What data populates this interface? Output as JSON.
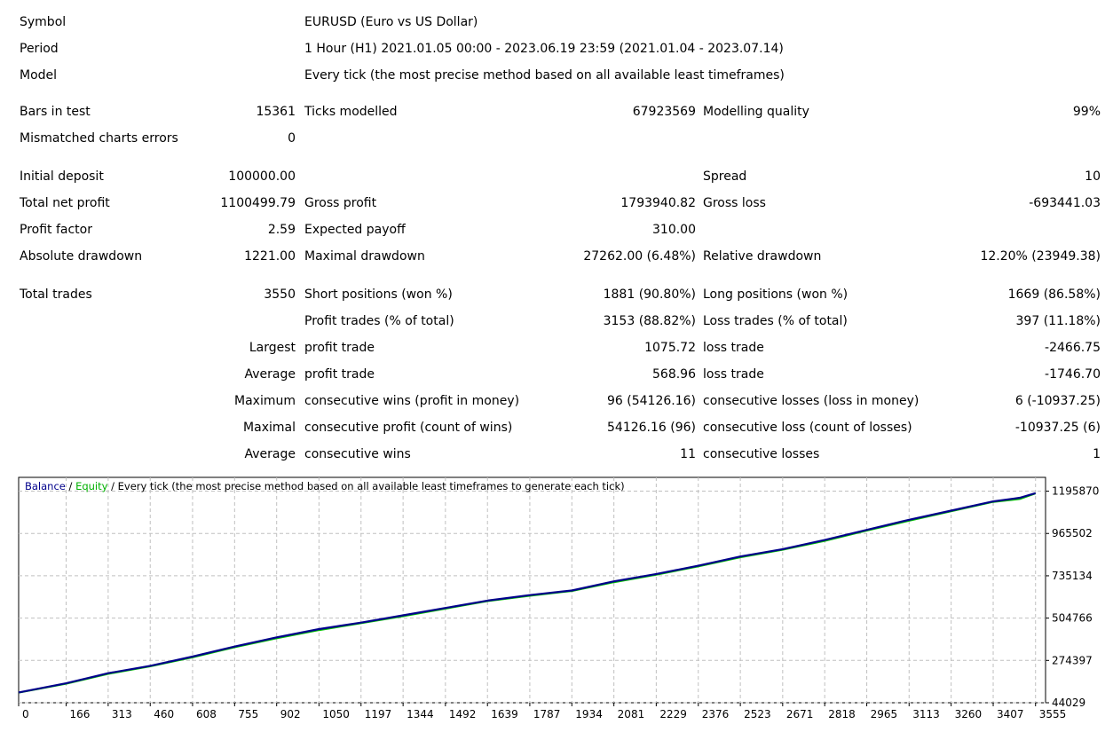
{
  "report": {
    "symbol": {
      "label": "Symbol",
      "value": "EURUSD (Euro vs US Dollar)"
    },
    "period": {
      "label": "Period",
      "value": "1 Hour (H1) 2021.01.05 00:00 - 2023.06.19 23:59 (2021.01.04 - 2023.07.14)"
    },
    "model": {
      "label": "Model",
      "value": "Every tick (the most precise method based on all available least timeframes)"
    },
    "bars_in_test": {
      "label": "Bars in test",
      "value": "15361"
    },
    "ticks_modelled": {
      "label": "Ticks modelled",
      "value": "67923569"
    },
    "modelling_quality": {
      "label": "Modelling quality",
      "value": "99%"
    },
    "mismatched_errors": {
      "label": "Mismatched charts errors",
      "value": "0"
    },
    "initial_deposit": {
      "label": "Initial deposit",
      "value": "100000.00"
    },
    "spread": {
      "label": "Spread",
      "value": "10"
    },
    "total_net_profit": {
      "label": "Total net profit",
      "value": "1100499.79"
    },
    "gross_profit": {
      "label": "Gross profit",
      "value": "1793940.82"
    },
    "gross_loss": {
      "label": "Gross loss",
      "value": "-693441.03"
    },
    "profit_factor": {
      "label": "Profit factor",
      "value": "2.59"
    },
    "expected_payoff": {
      "label": "Expected payoff",
      "value": "310.00"
    },
    "absolute_drawdown": {
      "label": "Absolute drawdown",
      "value": "1221.00"
    },
    "maximal_drawdown": {
      "label": "Maximal drawdown",
      "value": "27262.00 (6.48%)"
    },
    "relative_drawdown": {
      "label": "Relative drawdown",
      "value": "12.20% (23949.38)"
    },
    "total_trades": {
      "label": "Total trades",
      "value": "3550"
    },
    "short_positions": {
      "label": "Short positions (won %)",
      "value": "1881 (90.80%)"
    },
    "long_positions": {
      "label": "Long positions (won %)",
      "value": "1669 (86.58%)"
    },
    "profit_trades": {
      "label": "Profit trades (% of total)",
      "value": "3153 (88.82%)"
    },
    "loss_trades": {
      "label": "Loss trades (% of total)",
      "value": "397 (11.18%)"
    },
    "largest": {
      "prefix": "Largest",
      "profit_label": "profit trade",
      "profit_value": "1075.72",
      "loss_label": "loss trade",
      "loss_value": "-2466.75"
    },
    "average": {
      "prefix": "Average",
      "profit_label": "profit trade",
      "profit_value": "568.96",
      "loss_label": "loss trade",
      "loss_value": "-1746.70"
    },
    "maximum": {
      "prefix": "Maximum",
      "profit_label": "consecutive wins (profit in money)",
      "profit_value": "96 (54126.16)",
      "loss_label": "consecutive losses (loss in money)",
      "loss_value": "6 (-10937.25)"
    },
    "maximal": {
      "prefix": "Maximal",
      "profit_label": "consecutive profit (count of wins)",
      "profit_value": "54126.16 (96)",
      "loss_label": "consecutive loss (count of losses)",
      "loss_value": "-10937.25 (6)"
    },
    "average_consecutive": {
      "prefix": "Average",
      "profit_label": "consecutive wins",
      "profit_value": "11",
      "loss_label": "consecutive losses",
      "loss_value": "1"
    }
  },
  "chart_data": {
    "type": "line",
    "title_parts": {
      "balance": "Balance",
      "sep1": " / ",
      "equity": "Equity",
      "rest": " / Every tick (the most precise method based on all available least timeframes to generate each tick)"
    },
    "x_ticks": [
      0,
      166,
      313,
      460,
      608,
      755,
      902,
      1050,
      1197,
      1344,
      1492,
      1639,
      1787,
      1934,
      2081,
      2229,
      2376,
      2523,
      2671,
      2818,
      2965,
      3113,
      3260,
      3407,
      3555
    ],
    "y_ticks": [
      44029,
      274397,
      504766,
      735134,
      965502,
      1195870
    ],
    "xlim": [
      0,
      3590
    ],
    "ylim": [
      44029,
      1271000
    ],
    "grid": true,
    "series": [
      {
        "name": "Balance",
        "color": "#00008b",
        "x": [
          0,
          166,
          313,
          460,
          608,
          755,
          902,
          1050,
          1197,
          1344,
          1492,
          1639,
          1787,
          1934,
          2081,
          2229,
          2376,
          2523,
          2671,
          2818,
          2965,
          3113,
          3260,
          3407,
          3500,
          3555
        ],
        "y": [
          100000,
          150000,
          205000,
          245000,
          295000,
          350000,
          400000,
          445000,
          480000,
          520000,
          560000,
          600000,
          630000,
          655000,
          705000,
          745000,
          790000,
          840000,
          880000,
          930000,
          985000,
          1040000,
          1090000,
          1140000,
          1160000,
          1185000
        ]
      },
      {
        "name": "Equity",
        "color": "#00c000",
        "x": [
          0,
          166,
          313,
          460,
          608,
          755,
          902,
          1050,
          1197,
          1344,
          1492,
          1639,
          1787,
          1934,
          2081,
          2229,
          2376,
          2523,
          2671,
          2818,
          2965,
          3113,
          3260,
          3407,
          3500,
          3555
        ],
        "y": [
          98000,
          146000,
          200000,
          241000,
          290000,
          345000,
          394000,
          438000,
          476000,
          514000,
          555000,
          596000,
          625000,
          651000,
          699000,
          740000,
          785000,
          835000,
          876000,
          924000,
          980000,
          1034000,
          1085000,
          1136000,
          1152000,
          1182000
        ]
      }
    ]
  }
}
